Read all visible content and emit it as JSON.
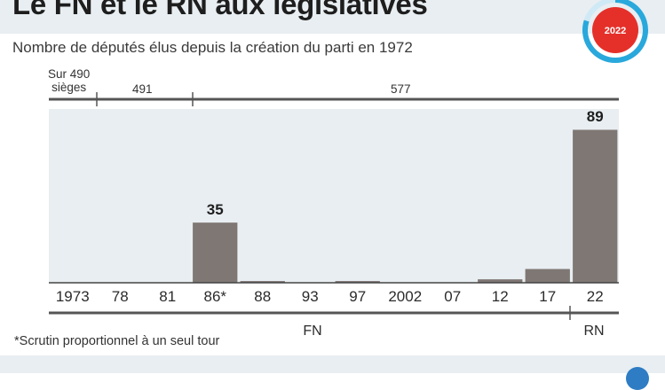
{
  "header": {
    "title": "Le FN et le RN aux législatives",
    "subtitle": "Nombre de députés élus depuis la création du parti en 1972",
    "badge_label": "2022"
  },
  "seat_groups": [
    {
      "label_line1": "Sur 490",
      "label_line2": "sièges"
    },
    {
      "label": "491"
    },
    {
      "label": "577"
    }
  ],
  "chart_data": {
    "type": "bar",
    "title": "Le FN et le RN aux législatives",
    "subtitle": "Nombre de députés élus depuis la création du parti en 1972",
    "categories": [
      "1973",
      "78",
      "81",
      "86*",
      "88",
      "93",
      "97",
      "2002",
      "07",
      "12",
      "17",
      "22"
    ],
    "values": [
      0,
      0,
      0,
      35,
      1,
      0,
      1,
      0,
      0,
      2,
      8,
      89
    ],
    "data_labels": {
      "86*": "35",
      "22": "89"
    },
    "ylim": [
      0,
      100
    ],
    "grid": false,
    "colors": {
      "bar": "#7f7774",
      "plot_bg": "#e8eef1",
      "badge": "#e5302a",
      "ring": "#29a8dc"
    }
  },
  "parties": [
    {
      "name": "FN"
    },
    {
      "name": "RN"
    }
  ],
  "footnote": "*Scrutin proportionnel à un seul tour"
}
